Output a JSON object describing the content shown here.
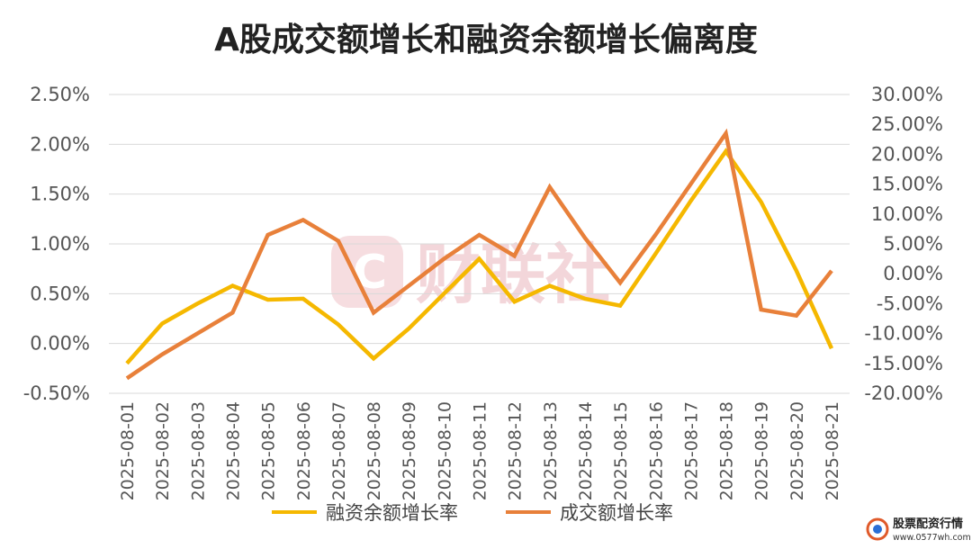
{
  "chart_data": {
    "type": "line",
    "title": "A股成交额增长和融资余额增长偏离度",
    "categories": [
      "2025-08-01",
      "2025-08-02",
      "2025-08-03",
      "2025-08-04",
      "2025-08-05",
      "2025-08-06",
      "2025-08-07",
      "2025-08-08",
      "2025-08-09",
      "2025-08-10",
      "2025-08-11",
      "2025-08-12",
      "2025-08-13",
      "2025-08-14",
      "2025-08-15",
      "2025-08-16",
      "2025-08-17",
      "2025-08-18",
      "2025-08-19",
      "2025-08-20",
      "2025-08-21"
    ],
    "series": [
      {
        "name": "融资余额增长率",
        "axis": "left",
        "color": "#F5B800",
        "values": [
          -0.2,
          0.2,
          0.4,
          0.58,
          0.44,
          0.45,
          0.19,
          -0.15,
          0.15,
          0.5,
          0.85,
          0.42,
          0.58,
          0.45,
          0.38,
          0.9,
          1.43,
          1.93,
          1.42,
          0.73,
          -0.05
        ]
      },
      {
        "name": "成交额增长率",
        "axis": "right",
        "color": "#E8803A",
        "values": [
          -17.5,
          -13.5,
          -10,
          -6.5,
          6.5,
          9,
          5.5,
          -6.5,
          -2,
          2.5,
          6.5,
          3,
          14.5,
          6,
          -1.5,
          6.5,
          15,
          23.5,
          -6,
          -7,
          0.5
        ]
      }
    ],
    "y_left": {
      "min": -0.5,
      "max": 2.5,
      "step": 0.5,
      "tick_labels": [
        "-0.50%",
        "0.00%",
        "0.50%",
        "1.00%",
        "1.50%",
        "2.00%",
        "2.50%"
      ]
    },
    "y_right": {
      "min": -20,
      "max": 30,
      "step": 5,
      "tick_labels": [
        "-20.00%",
        "-15.00%",
        "-10.00%",
        "-5.00%",
        "0.00%",
        "5.00%",
        "10.00%",
        "15.00%",
        "20.00%",
        "25.00%",
        "30.00%"
      ]
    },
    "grid": true,
    "legend_position": "bottom-center"
  },
  "watermark": {
    "center_text": "财联社",
    "corner_name": "股票配资行情",
    "corner_url": "www.0577wh.com"
  }
}
